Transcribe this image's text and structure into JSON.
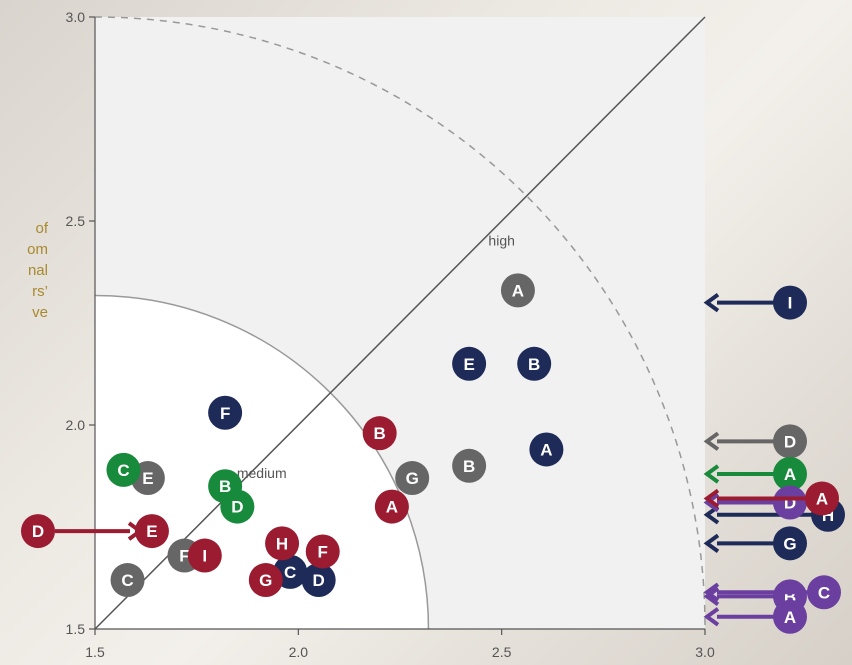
{
  "side_note_lines": [
    "of",
    "om",
    "nal",
    "rs’",
    "ve"
  ],
  "colors": {
    "navy": "#1e2a57",
    "red": "#9b1b30",
    "gray": "#666666",
    "green": "#178a3c",
    "purple": "#6b3fa0"
  },
  "chart_data": {
    "type": "scatter",
    "xlim": [
      1.5,
      3.0
    ],
    "ylim": [
      1.5,
      3.0
    ],
    "x_ticks": [
      "1.5",
      "2.0",
      "2.5",
      "3.0"
    ],
    "y_ticks": [
      "1.5",
      "2.0",
      "2.5",
      "3.0"
    ],
    "grid": false,
    "zone_labels": {
      "high": "high",
      "medium": "medium"
    },
    "points": [
      {
        "label": "A",
        "color": "gray",
        "x": 2.54,
        "y": 2.33
      },
      {
        "label": "E",
        "color": "navy",
        "x": 2.42,
        "y": 2.15
      },
      {
        "label": "B",
        "color": "navy",
        "x": 2.58,
        "y": 2.15
      },
      {
        "label": "F",
        "color": "navy",
        "x": 1.82,
        "y": 2.03
      },
      {
        "label": "B",
        "color": "red",
        "x": 2.2,
        "y": 1.98
      },
      {
        "label": "A",
        "color": "navy",
        "x": 2.61,
        "y": 1.94
      },
      {
        "label": "B",
        "color": "gray",
        "x": 2.42,
        "y": 1.9
      },
      {
        "label": "G",
        "color": "gray",
        "x": 2.28,
        "y": 1.87
      },
      {
        "label": "E",
        "color": "gray",
        "x": 1.63,
        "y": 1.87
      },
      {
        "label": "C",
        "color": "green",
        "x": 1.57,
        "y": 1.89
      },
      {
        "label": "B",
        "color": "green",
        "x": 1.82,
        "y": 1.85
      },
      {
        "label": "D",
        "color": "green",
        "x": 1.85,
        "y": 1.8
      },
      {
        "label": "A",
        "color": "red",
        "x": 2.23,
        "y": 1.8
      },
      {
        "label": "E",
        "color": "red",
        "x": 1.64,
        "y": 1.74
      },
      {
        "label": "F",
        "color": "gray",
        "x": 1.72,
        "y": 1.68
      },
      {
        "label": "I",
        "color": "red",
        "x": 1.77,
        "y": 1.68
      },
      {
        "label": "C",
        "color": "gray",
        "x": 1.58,
        "y": 1.62
      },
      {
        "label": "C",
        "color": "navy",
        "x": 1.98,
        "y": 1.64
      },
      {
        "label": "D",
        "color": "navy",
        "x": 2.05,
        "y": 1.62
      },
      {
        "label": "H",
        "color": "red",
        "x": 1.96,
        "y": 1.71
      },
      {
        "label": "F",
        "color": "red",
        "x": 2.06,
        "y": 1.69
      },
      {
        "label": "G",
        "color": "red",
        "x": 1.92,
        "y": 1.62
      }
    ],
    "arrows_out_right": [
      {
        "label": "I",
        "color": "navy",
        "y": 2.3
      },
      {
        "label": "D",
        "color": "gray",
        "y": 1.96
      },
      {
        "label": "A",
        "color": "green",
        "y": 1.88
      },
      {
        "label": "H",
        "color": "navy",
        "y": 1.78
      },
      {
        "label": "D",
        "color": "purple",
        "y": 1.81
      },
      {
        "label": "A",
        "color": "red",
        "y": 1.82
      },
      {
        "label": "G",
        "color": "navy",
        "y": 1.71
      },
      {
        "label": "B",
        "color": "purple",
        "y": 1.58
      },
      {
        "label": "C",
        "color": "purple",
        "y": 1.59
      },
      {
        "label": "A",
        "color": "purple",
        "y": 1.53
      }
    ],
    "arrows_out_left": [
      {
        "label": "D",
        "color": "red",
        "y": 1.74
      }
    ]
  }
}
